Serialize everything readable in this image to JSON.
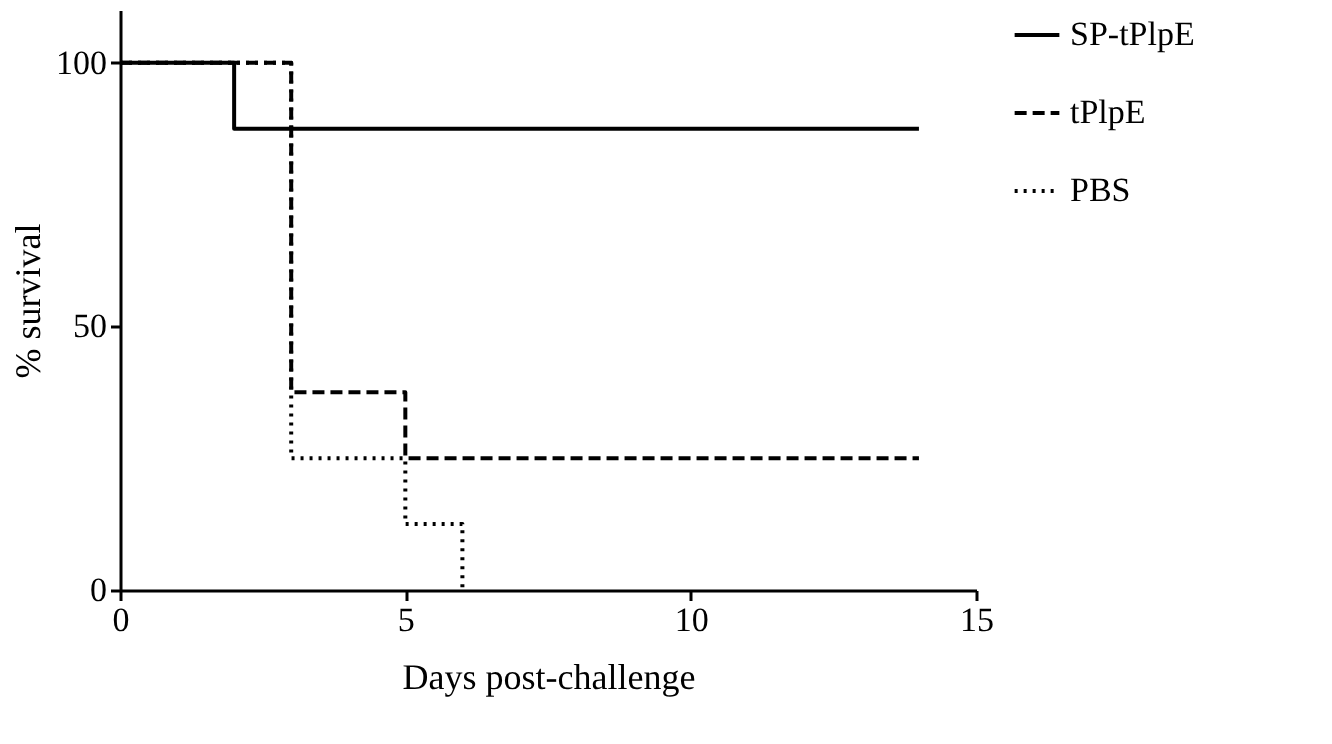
{
  "chart_data": {
    "type": "step",
    "xlabel": "Days post-challenge",
    "ylabel": "% survival",
    "xlim": [
      0,
      15
    ],
    "xticks": [
      0,
      5,
      10,
      15
    ],
    "ylim": [
      0,
      110
    ],
    "yticks": [
      0,
      50,
      100
    ],
    "grid": false,
    "legend": "right",
    "marker": "none",
    "series": [
      {
        "name": "SP-tPlpE",
        "color": "#000000",
        "line_style": "solid",
        "x": [
          0,
          2,
          14
        ],
        "values": [
          100,
          87.5,
          87.5
        ]
      },
      {
        "name": "tPlpE",
        "color": "#000000",
        "line_style": "dashed",
        "x": [
          0,
          3,
          5,
          14
        ],
        "values": [
          100,
          37.5,
          25,
          25
        ]
      },
      {
        "name": "PBS",
        "color": "#000000",
        "line_style": "dotted",
        "x": [
          0,
          3,
          5,
          6
        ],
        "values": [
          100,
          25,
          12.5,
          0
        ]
      }
    ]
  }
}
